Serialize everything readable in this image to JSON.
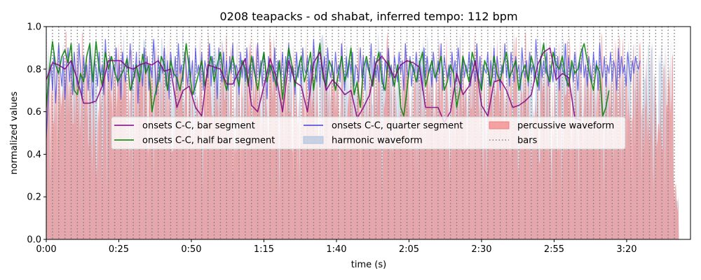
{
  "chart_data": {
    "type": "line",
    "title": "0208 teapacks - od shabat, inferred tempo: 112 bpm",
    "xlabel": "time (s)",
    "ylabel": "normalized values",
    "xlim": [
      0,
      222
    ],
    "ylim": [
      0,
      1.0
    ],
    "x_ticks": [
      {
        "value": 0,
        "label": "0:00"
      },
      {
        "value": 25,
        "label": "0:25"
      },
      {
        "value": 50,
        "label": "0:50"
      },
      {
        "value": 75,
        "label": "1:15"
      },
      {
        "value": 100,
        "label": "1:40"
      },
      {
        "value": 125,
        "label": "2:05"
      },
      {
        "value": 150,
        "label": "2:30"
      },
      {
        "value": 175,
        "label": "2:55"
      },
      {
        "value": 200,
        "label": "3:20"
      }
    ],
    "y_ticks": [
      {
        "value": 0.0,
        "label": "0.0"
      },
      {
        "value": 0.2,
        "label": "0.2"
      },
      {
        "value": 0.4,
        "label": "0.4"
      },
      {
        "value": 0.6,
        "label": "0.6"
      },
      {
        "value": 0.8,
        "label": "0.8"
      },
      {
        "value": 1.0,
        "label": "1.0"
      }
    ],
    "tempo_bpm": 112,
    "bar_period_s": 2.143,
    "song_end_s": 218,
    "legend": {
      "placement": "center",
      "columns": 3,
      "entries": [
        {
          "label": "onsets C-C, bar segment",
          "style": "line",
          "color": "#800080"
        },
        {
          "label": "onsets C-C, half bar segment",
          "style": "line",
          "color": "#008000"
        },
        {
          "label": "onsets C-C, quarter segment",
          "style": "line",
          "color": "#4040e0"
        },
        {
          "label": "harmonic waveform",
          "style": "patch",
          "color": "#b0c4de"
        },
        {
          "label": "percussive waveform",
          "style": "patch",
          "color": "#f08080"
        },
        {
          "label": "bars",
          "style": "dotted",
          "color": "#808080"
        }
      ]
    },
    "series": [
      {
        "name": "onsets C-C, bar segment",
        "color": "#800080",
        "step_s": 2.143,
        "values": [
          0.75,
          0.83,
          0.82,
          0.8,
          0.84,
          0.75,
          0.64,
          0.64,
          0.65,
          0.72,
          0.84,
          0.84,
          0.84,
          0.81,
          0.8,
          0.82,
          0.83,
          0.82,
          0.84,
          0.79,
          0.8,
          0.62,
          0.7,
          0.72,
          0.62,
          0.58,
          0.82,
          0.81,
          0.8,
          0.73,
          0.73,
          0.79,
          0.85,
          0.63,
          0.6,
          0.72,
          0.85,
          0.76,
          0.6,
          0.84,
          0.74,
          0.72,
          0.6,
          0.83,
          0.88,
          0.7,
          0.75,
          0.72,
          0.68,
          0.7,
          0.57,
          0.62,
          0.68,
          0.83,
          0.86,
          0.82,
          0.76,
          0.82,
          0.84,
          0.83,
          0.81,
          0.62,
          0.62,
          0.62,
          0.55,
          0.6,
          0.78,
          0.68,
          0.72,
          0.84,
          0.63,
          0.58,
          0.74,
          0.75,
          0.7,
          0.62,
          0.63,
          0.65,
          0.68,
          0.82,
          0.88,
          0.9,
          0.75,
          0.78,
          0.76,
          0.57,
          0.56
        ]
      },
      {
        "name": "onsets C-C, half bar segment",
        "color": "#008000",
        "step_s": 1.0714,
        "values": [
          0.62,
          0.8,
          0.93,
          0.82,
          0.78,
          0.86,
          0.89,
          0.83,
          0.92,
          0.7,
          0.68,
          0.78,
          0.74,
          0.86,
          0.92,
          0.74,
          0.93,
          0.8,
          0.72,
          0.88,
          0.8,
          0.86,
          0.79,
          0.74,
          0.77,
          0.8,
          0.85,
          0.7,
          0.75,
          0.82,
          0.74,
          0.87,
          0.78,
          0.82,
          0.6,
          0.68,
          0.74,
          0.86,
          0.82,
          0.7,
          0.84,
          0.78,
          0.76,
          0.7,
          0.78,
          0.92,
          0.8,
          0.68,
          0.72,
          0.78,
          0.84,
          0.72,
          0.8,
          0.86,
          0.74,
          0.82,
          0.88,
          0.76,
          0.7,
          0.8,
          0.86,
          0.78,
          0.72,
          0.84,
          0.8,
          0.72,
          0.86,
          0.78,
          0.7,
          0.8,
          0.88,
          0.74,
          0.82,
          0.78,
          0.72,
          0.84,
          0.66,
          0.78,
          0.9,
          0.82,
          0.72,
          0.8,
          0.86,
          0.74,
          0.8,
          0.88,
          0.7,
          0.82,
          0.92,
          0.76,
          0.72,
          0.84,
          0.8,
          0.7,
          0.78,
          0.86,
          0.74,
          0.8,
          0.9,
          0.68,
          0.74,
          0.62,
          0.8,
          0.86,
          0.78,
          0.72,
          0.82,
          0.88,
          0.74,
          0.7,
          0.84,
          0.78,
          0.72,
          0.82,
          0.62,
          0.58,
          0.7,
          0.84,
          0.8,
          0.74,
          0.82,
          0.88,
          0.72,
          0.78,
          0.84,
          0.76,
          0.8,
          0.86,
          0.7,
          0.74,
          0.82,
          0.78,
          0.62,
          0.7,
          0.86,
          0.8,
          0.74,
          0.88,
          0.82,
          0.76,
          0.7,
          0.84,
          0.8,
          0.72,
          0.86,
          0.78,
          0.74,
          0.82,
          0.88,
          0.76,
          0.8,
          0.84,
          0.7,
          0.78,
          0.82,
          0.74,
          0.86,
          0.8,
          0.72,
          0.84,
          0.92,
          0.78,
          0.74,
          0.88,
          0.82,
          0.8,
          0.86,
          0.76,
          0.72,
          0.84,
          0.78,
          0.8,
          0.88,
          0.92,
          0.84,
          0.76,
          0.7,
          0.82,
          0.78,
          0.58,
          0.62,
          0.7
        ]
      },
      {
        "name": "onsets C-C, quarter segment",
        "color": "#4040e0",
        "step_s": 0.5357,
        "values": [
          0.48,
          0.62,
          0.74,
          0.82,
          0.7,
          0.88,
          0.64,
          0.78,
          0.92,
          0.8,
          0.72,
          0.86,
          0.66,
          0.8,
          0.9,
          0.74,
          0.84,
          0.68,
          0.88,
          0.78,
          0.72,
          0.92,
          0.8,
          0.66,
          0.86,
          0.76,
          0.82,
          0.7,
          0.9,
          0.78,
          0.64,
          0.84,
          0.8,
          0.72,
          0.88,
          0.76,
          0.82,
          0.68,
          0.94,
          0.8,
          0.74,
          0.86,
          0.7,
          0.82,
          0.78,
          0.9,
          0.72,
          0.84,
          0.66,
          0.88,
          0.8,
          0.74,
          0.86,
          0.78,
          0.92,
          0.7,
          0.82,
          0.76,
          0.88,
          0.64,
          0.84,
          0.8,
          0.72,
          0.9,
          0.78,
          0.86,
          0.7,
          0.82,
          0.76,
          0.94,
          0.8,
          0.68,
          0.86,
          0.74,
          0.82,
          0.78,
          0.9,
          0.72,
          0.84,
          0.66,
          0.88,
          0.8,
          0.76,
          0.86,
          0.7,
          0.92,
          0.78,
          0.82,
          0.74,
          0.88,
          0.8,
          0.72,
          0.86,
          0.76,
          0.84,
          0.68,
          0.9,
          0.78,
          0.82,
          0.74,
          0.88,
          0.7,
          0.84,
          0.8,
          0.76,
          0.92,
          0.72,
          0.86,
          0.78,
          0.82,
          0.66,
          0.9,
          0.8,
          0.74,
          0.88,
          0.76,
          0.84,
          0.7,
          0.86,
          0.78,
          0.92,
          0.72,
          0.82,
          0.8,
          0.68,
          0.88,
          0.76,
          0.84,
          0.74,
          0.9,
          0.78,
          0.82,
          0.7,
          0.86,
          0.8,
          0.74,
          0.92,
          0.76,
          0.84,
          0.72,
          0.88,
          0.8,
          0.66,
          0.86,
          0.78,
          0.82,
          0.74,
          0.9,
          0.7,
          0.84,
          0.8,
          0.76,
          0.88,
          0.72,
          0.86,
          0.78,
          0.92,
          0.74,
          0.82,
          0.8,
          0.68,
          0.88,
          0.76,
          0.84,
          0.72,
          0.9,
          0.8,
          0.78,
          0.86,
          0.7,
          0.82,
          0.76,
          0.94,
          0.8,
          0.74,
          0.88,
          0.72,
          0.84,
          0.78,
          0.86,
          0.7,
          0.9,
          0.8,
          0.76,
          0.84,
          0.72,
          0.88,
          0.78,
          0.82,
          0.74,
          0.92,
          0.8,
          0.7,
          0.86,
          0.76,
          0.84,
          0.78,
          0.88,
          0.72,
          0.82,
          0.8,
          0.74,
          0.9,
          0.76,
          0.86,
          0.7,
          0.84,
          0.8,
          0.78,
          0.92,
          0.72,
          0.86,
          0.76,
          0.82,
          0.74,
          0.88,
          0.8,
          0.7,
          0.84,
          0.78,
          0.9,
          0.76,
          0.82,
          0.72,
          0.86,
          0.8,
          0.74,
          0.88,
          0.78,
          0.84,
          0.7,
          0.92,
          0.8,
          0.76,
          0.86,
          0.72,
          0.82,
          0.78,
          0.88,
          0.74,
          0.84,
          0.8,
          0.7,
          0.9,
          0.76,
          0.86,
          0.78,
          0.82,
          0.72,
          0.88,
          0.8,
          0.74,
          0.84,
          0.78,
          0.92,
          0.7,
          0.86,
          0.8,
          0.76,
          0.82,
          0.72,
          0.88,
          0.78,
          0.84,
          0.74,
          0.9,
          0.8,
          0.7,
          0.86,
          0.76,
          0.82,
          0.78,
          0.88,
          0.72,
          0.84,
          0.8,
          0.74,
          0.92,
          0.76,
          0.86,
          0.7,
          0.82,
          0.8,
          0.78,
          0.88,
          0.72,
          0.84,
          0.76,
          0.9,
          0.74,
          0.86,
          0.8,
          0.7,
          0.82,
          0.78,
          0.92,
          0.76,
          0.84,
          0.72,
          0.88,
          0.8,
          0.74,
          0.86,
          0.78,
          0.82,
          0.7,
          0.9,
          0.8,
          0.76,
          0.84,
          0.72,
          0.88,
          0.78,
          0.82,
          0.74,
          0.94,
          0.8,
          0.7,
          0.86,
          0.76,
          0.84,
          0.78,
          0.88,
          0.72,
          0.82,
          0.8,
          0.74,
          0.9,
          0.76,
          0.86,
          0.7,
          0.84,
          0.8,
          0.78,
          0.92,
          0.72,
          0.86,
          0.76,
          0.82,
          0.74,
          0.88,
          0.8,
          0.7,
          0.84,
          0.78,
          0.9,
          0.76,
          0.82,
          0.72,
          0.86,
          0.8,
          0.74,
          0.88,
          0.78,
          0.84,
          0.7,
          0.92,
          0.8,
          0.76,
          0.86,
          0.72,
          0.82,
          0.78,
          0.88,
          0.74,
          0.84,
          0.8,
          0.7,
          0.9,
          0.76,
          0.86,
          0.78,
          0.82,
          0.72,
          0.88,
          0.8,
          0.74,
          0.84,
          0.78,
          0.86,
          0.82,
          0.8,
          0.84
        ]
      }
    ],
    "waveforms": {
      "harmonic": {
        "color": "#b0c4de",
        "step_s": 0.2679,
        "typical_range": [
          0.55,
          0.98
        ]
      },
      "percussive": {
        "color": "#f08080",
        "step_s": 0.2679,
        "typical_range": [
          0.4,
          0.98
        ]
      }
    }
  }
}
